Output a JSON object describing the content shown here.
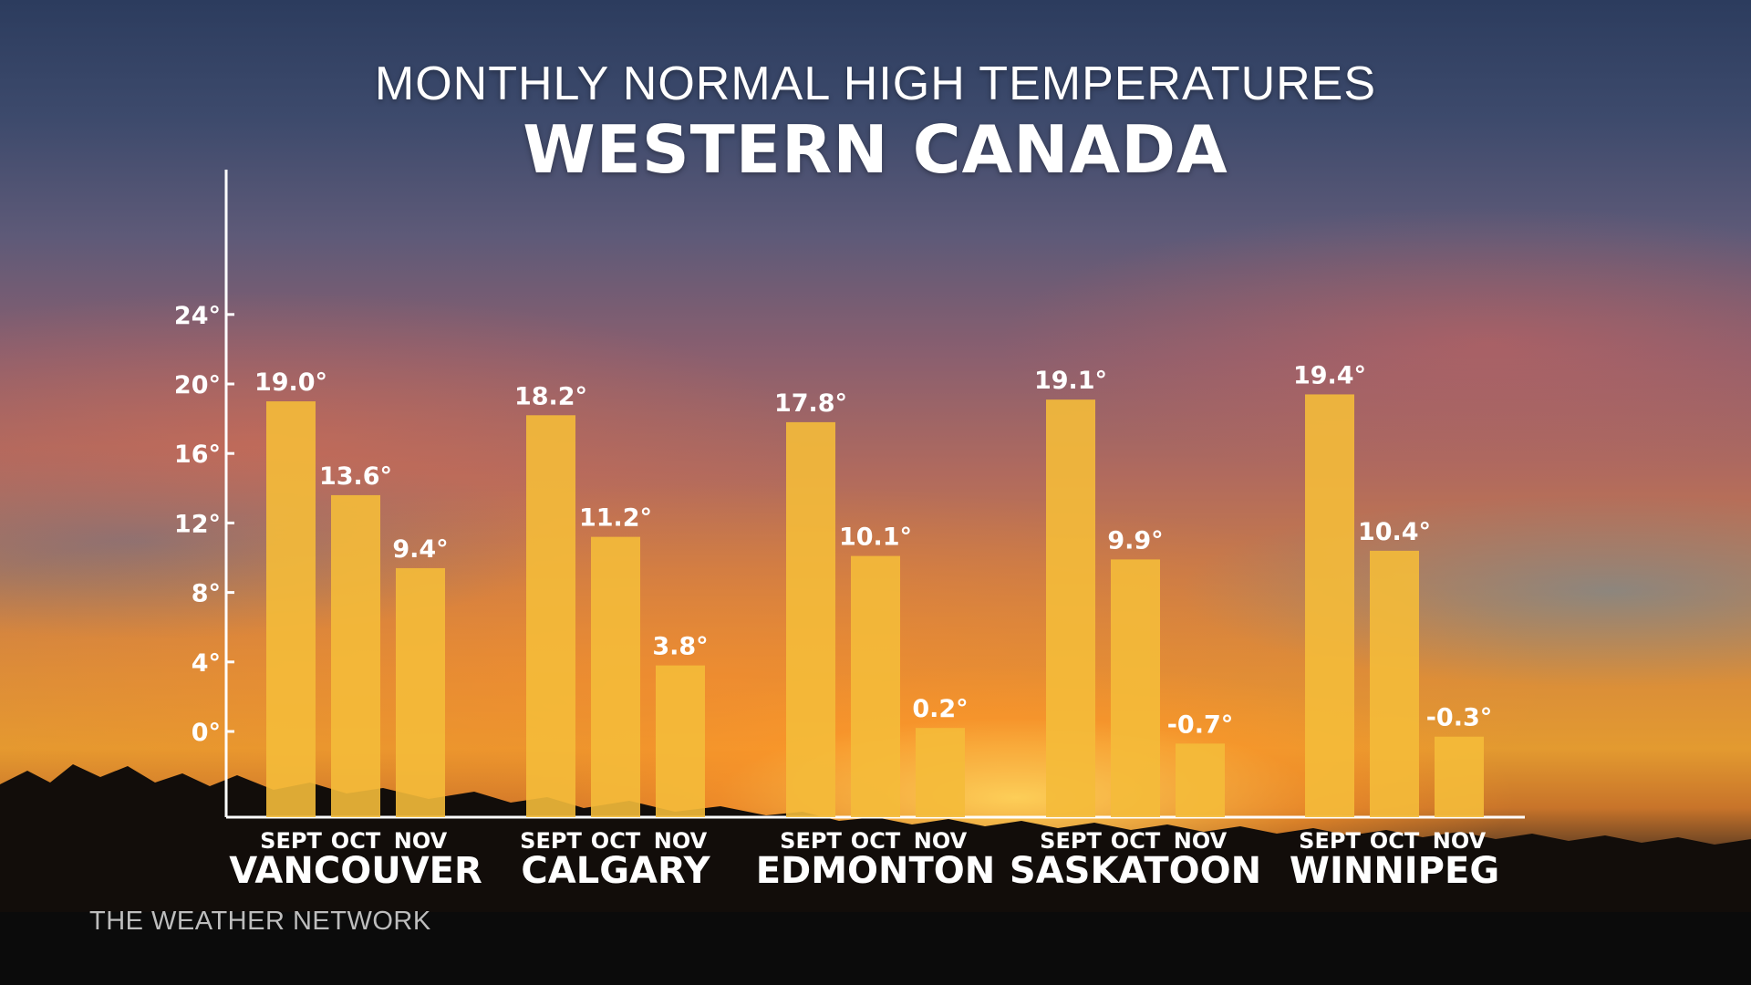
{
  "title": "MONTHLY NORMAL HIGH TEMPERATURES",
  "subtitle": "WESTERN CANADA",
  "watermark": "THE WEATHER NETWORK",
  "colors": {
    "bar": "#f4bb3a",
    "axis": "#ffffff",
    "text": "#ffffff"
  },
  "chart_data": {
    "type": "bar",
    "title": "MONTHLY NORMAL HIGH TEMPERATURES",
    "subtitle": "WESTERN CANADA",
    "ylim": [
      -4,
      26
    ],
    "yticks": [
      0,
      4,
      8,
      12,
      16,
      20,
      24
    ],
    "ytick_labels": [
      "0°",
      "4°",
      "8°",
      "12°",
      "16°",
      "20°",
      "24°"
    ],
    "grid": false,
    "months": [
      "SEPT",
      "OCT",
      "NOV"
    ],
    "groups": [
      {
        "city": "VANCOUVER",
        "values": [
          19.0,
          13.6,
          9.4
        ],
        "labels": [
          "19.0°",
          "13.6°",
          "9.4°"
        ]
      },
      {
        "city": "CALGARY",
        "values": [
          18.2,
          11.2,
          3.8
        ],
        "labels": [
          "18.2°",
          "11.2°",
          "3.8°"
        ]
      },
      {
        "city": "EDMONTON",
        "values": [
          17.8,
          10.1,
          0.2
        ],
        "labels": [
          "17.8°",
          "10.1°",
          "0.2°"
        ]
      },
      {
        "city": "SASKATOON",
        "values": [
          19.1,
          9.9,
          -0.7
        ],
        "labels": [
          "19.1°",
          "9.9°",
          "-0.7°"
        ]
      },
      {
        "city": "WINNIPEG",
        "values": [
          19.4,
          10.4,
          -0.3
        ],
        "labels": [
          "19.4°",
          "10.4°",
          "-0.3°"
        ]
      }
    ]
  }
}
